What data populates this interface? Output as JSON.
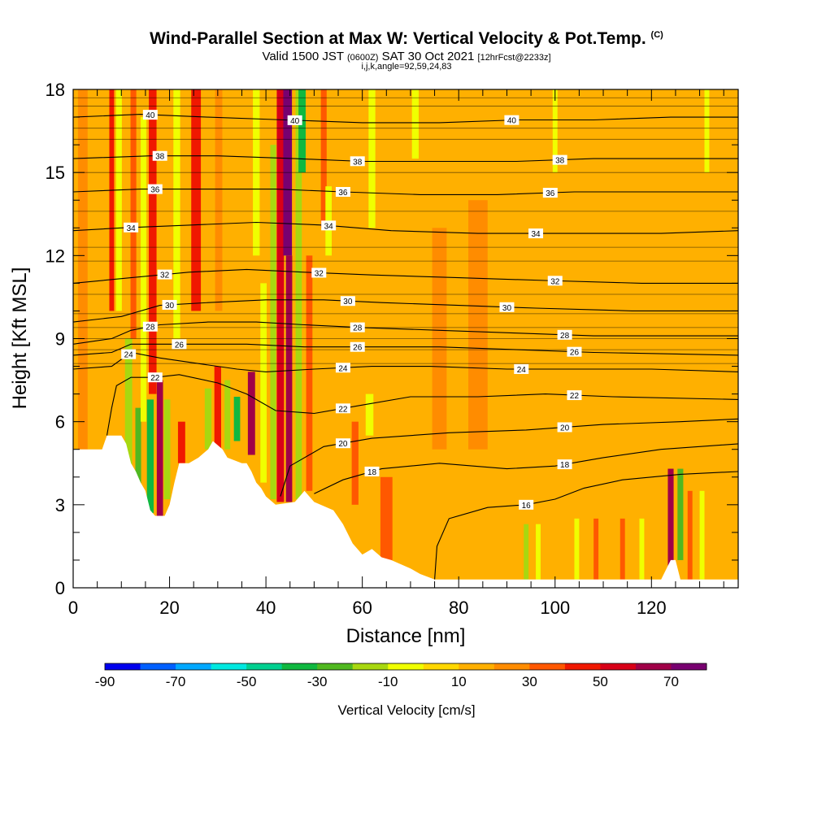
{
  "chart_data": {
    "type": "heatmap",
    "title": "Wind-Parallel Section at Max W: Vertical Velocity & Pot.Temp.",
    "title_tag": "(C)",
    "subtitle": {
      "valid": "Valid 1500 JST",
      "utc": "(0600Z)",
      "date": "SAT 30 Oct 2021",
      "fcst": "[12hrFcst@2233z]"
    },
    "subtitle2": "i,j,k,angle=92,59,24,83",
    "xlabel": "Distance [nm]",
    "ylabel": "Height [Kft MSL]",
    "xlim": [
      0,
      138
    ],
    "ylim": [
      0,
      18
    ],
    "xticks": [
      0,
      20,
      40,
      60,
      80,
      100,
      120
    ],
    "yticks": [
      0,
      3,
      6,
      9,
      12,
      15,
      18
    ],
    "colorbar": {
      "label": "Vertical Velocity [cm/s]",
      "tick_values": [
        -90,
        -70,
        -50,
        -30,
        -10,
        10,
        30,
        50,
        70
      ],
      "colors": [
        "#0000ee",
        "#0060ff",
        "#00a8ff",
        "#00e8e0",
        "#00d090",
        "#10b840",
        "#50b820",
        "#a8d810",
        "#f0ff00",
        "#ffd800",
        "#ffb000",
        "#ff8c00",
        "#ff5800",
        "#f01800",
        "#d80018",
        "#a00048",
        "#780070"
      ]
    },
    "background_value": 0,
    "terrain": [
      [
        0,
        5.0
      ],
      [
        6,
        5.0
      ],
      [
        7,
        5.5
      ],
      [
        10,
        5.5
      ],
      [
        11,
        5.2
      ],
      [
        12,
        4.5
      ],
      [
        13,
        4.2
      ],
      [
        14,
        3.8
      ],
      [
        15,
        3.5
      ],
      [
        16,
        2.8
      ],
      [
        17,
        2.6
      ],
      [
        19,
        2.6
      ],
      [
        20,
        3.0
      ],
      [
        21,
        3.8
      ],
      [
        22,
        4.5
      ],
      [
        24,
        4.5
      ],
      [
        26,
        4.7
      ],
      [
        28,
        5.0
      ],
      [
        29,
        5.3
      ],
      [
        31,
        5.0
      ],
      [
        32,
        4.7
      ],
      [
        35,
        4.5
      ],
      [
        36,
        4.5
      ],
      [
        37,
        4.2
      ],
      [
        38,
        3.8
      ],
      [
        39,
        3.6
      ],
      [
        40,
        3.3
      ],
      [
        42,
        3.0
      ],
      [
        46,
        3.1
      ],
      [
        48,
        3.5
      ],
      [
        50,
        3.1
      ],
      [
        54,
        2.8
      ],
      [
        56,
        2.3
      ],
      [
        58,
        1.6
      ],
      [
        60,
        1.2
      ],
      [
        62,
        1.4
      ],
      [
        64,
        1.1
      ],
      [
        66,
        1.0
      ],
      [
        70,
        0.7
      ],
      [
        72,
        0.5
      ],
      [
        75,
        0.3
      ],
      [
        100,
        0.3
      ],
      [
        122,
        0.3
      ],
      [
        124,
        1.0
      ],
      [
        125,
        1.0
      ],
      [
        126,
        0.3
      ],
      [
        138,
        0.3
      ]
    ],
    "vertical_velocity_bands": [
      {
        "x": 2,
        "w": 2,
        "y0": 5,
        "y1": 18,
        "v": 10
      },
      {
        "x": 8,
        "w": 1,
        "y0": 10,
        "y1": 18,
        "v": 30
      },
      {
        "x": 9.5,
        "w": 1.2,
        "y0": 10,
        "y1": 18,
        "v": -20
      },
      {
        "x": 11.5,
        "w": 1.5,
        "y0": 3.6,
        "y1": 9,
        "v": -30
      },
      {
        "x": 12.5,
        "w": 1.2,
        "y0": 9,
        "y1": 18,
        "v": 20
      },
      {
        "x": 13.5,
        "w": 1.2,
        "y0": 3.6,
        "y1": 6.5,
        "v": -40
      },
      {
        "x": 14.6,
        "w": 1.2,
        "y0": 6,
        "y1": 17,
        "v": -20
      },
      {
        "x": 16,
        "w": 1.4,
        "y0": 2.7,
        "y1": 6.8,
        "v": -50
      },
      {
        "x": 16.5,
        "w": 1.6,
        "y0": 7,
        "y1": 18,
        "v": 30
      },
      {
        "x": 18,
        "w": 1.3,
        "y0": 2.6,
        "y1": 7.5,
        "v": 50
      },
      {
        "x": 19.5,
        "w": 1.3,
        "y0": 3.2,
        "y1": 6.8,
        "v": -30
      },
      {
        "x": 21.5,
        "w": 1.4,
        "y0": 9,
        "y1": 18,
        "v": -20
      },
      {
        "x": 22.5,
        "w": 1.5,
        "y0": 4.5,
        "y1": 6,
        "v": 30
      },
      {
        "x": 25.5,
        "w": 2,
        "y0": 10,
        "y1": 18,
        "v": 30
      },
      {
        "x": 28,
        "w": 1.4,
        "y0": 5,
        "y1": 7.2,
        "v": -30
      },
      {
        "x": 30,
        "w": 1.4,
        "y0": 5,
        "y1": 8,
        "v": 30
      },
      {
        "x": 30.2,
        "w": 1.5,
        "y0": 10,
        "y1": 18,
        "v": 10
      },
      {
        "x": 32,
        "w": 1.2,
        "y0": 5,
        "y1": 7.5,
        "v": -30
      },
      {
        "x": 34,
        "w": 1.3,
        "y0": 5.3,
        "y1": 6.9,
        "v": -50
      },
      {
        "x": 37,
        "w": 1.5,
        "y0": 4.8,
        "y1": 7.8,
        "v": 50
      },
      {
        "x": 39.5,
        "w": 1.3,
        "y0": 3.8,
        "y1": 11,
        "v": -20
      },
      {
        "x": 38,
        "w": 1.4,
        "y0": 12,
        "y1": 18,
        "v": -20
      },
      {
        "x": 41.5,
        "w": 1.2,
        "y0": 3.2,
        "y1": 16,
        "v": -30
      },
      {
        "x": 43,
        "w": 1.5,
        "y0": 3.1,
        "y1": 18,
        "v": 40
      },
      {
        "x": 44.5,
        "w": 1.8,
        "y0": 12,
        "y1": 18,
        "v": 60
      },
      {
        "x": 44.8,
        "w": 1.3,
        "y0": 3.1,
        "y1": 12,
        "v": 50
      },
      {
        "x": 46.8,
        "w": 1.3,
        "y0": 3.2,
        "y1": 18,
        "v": -30
      },
      {
        "x": 47.5,
        "w": 1.5,
        "y0": 15,
        "y1": 18,
        "v": -50
      },
      {
        "x": 49,
        "w": 1.3,
        "y0": 3.5,
        "y1": 12,
        "v": 20
      },
      {
        "x": 52,
        "w": 1.2,
        "y0": 13,
        "y1": 18,
        "v": 20
      },
      {
        "x": 53,
        "w": 1.3,
        "y0": 12,
        "y1": 14.5,
        "v": -20
      },
      {
        "x": 58.5,
        "w": 1.4,
        "y0": 3,
        "y1": 6,
        "v": 20
      },
      {
        "x": 61.5,
        "w": 1.6,
        "y0": 5.5,
        "y1": 7,
        "v": -20
      },
      {
        "x": 62,
        "w": 1.4,
        "y0": 13,
        "y1": 18,
        "v": -20
      },
      {
        "x": 65,
        "w": 2.5,
        "y0": 1,
        "y1": 4,
        "v": 20
      },
      {
        "x": 71,
        "w": 1.4,
        "y0": 15.5,
        "y1": 18,
        "v": -15
      },
      {
        "x": 76,
        "w": 3,
        "y0": 5,
        "y1": 13,
        "v": 15
      },
      {
        "x": 84,
        "w": 4,
        "y0": 5,
        "y1": 14,
        "v": 10
      },
      {
        "x": 94,
        "w": 1,
        "y0": 0.3,
        "y1": 2.3,
        "v": -30
      },
      {
        "x": 96.5,
        "w": 1,
        "y0": 0.3,
        "y1": 2.3,
        "v": -20
      },
      {
        "x": 100,
        "w": 1,
        "y0": 15,
        "y1": 18,
        "v": -15
      },
      {
        "x": 104.5,
        "w": 1,
        "y0": 0.3,
        "y1": 2.5,
        "v": -20
      },
      {
        "x": 108.5,
        "w": 1,
        "y0": 0.3,
        "y1": 2.5,
        "v": 20
      },
      {
        "x": 114,
        "w": 1,
        "y0": 0.3,
        "y1": 2.5,
        "v": 20
      },
      {
        "x": 118,
        "w": 1,
        "y0": 0.3,
        "y1": 2.5,
        "v": -20
      },
      {
        "x": 124,
        "w": 1.2,
        "y0": 0.3,
        "y1": 4.3,
        "v": 50
      },
      {
        "x": 126,
        "w": 1.2,
        "y0": 1,
        "y1": 4.3,
        "v": -40
      },
      {
        "x": 128,
        "w": 1,
        "y0": 0.3,
        "y1": 3.5,
        "v": 20
      },
      {
        "x": 130.5,
        "w": 1,
        "y0": 0.3,
        "y1": 3.5,
        "v": -20
      },
      {
        "x": 131.5,
        "w": 1,
        "y0": 15,
        "y1": 18,
        "v": -15
      }
    ],
    "theta_contours": [
      {
        "k": 16,
        "pts": [
          [
            75,
            0.3
          ],
          [
            75.5,
            1.5
          ],
          [
            78,
            2.5
          ],
          [
            86,
            2.9
          ],
          [
            94,
            3.0
          ],
          [
            100,
            3.2
          ],
          [
            106,
            3.6
          ],
          [
            114,
            3.9
          ],
          [
            126,
            4.1
          ],
          [
            138,
            4.2
          ]
        ]
      },
      {
        "k": 18,
        "pts": [
          [
            50,
            3.4
          ],
          [
            56,
            3.9
          ],
          [
            64,
            4.3
          ],
          [
            76,
            4.5
          ],
          [
            90,
            4.3
          ],
          [
            100,
            4.4
          ],
          [
            110,
            4.7
          ],
          [
            122,
            5.0
          ],
          [
            138,
            5.2
          ]
        ]
      },
      {
        "k": 20,
        "pts": [
          [
            43,
            3.3
          ],
          [
            45,
            4.4
          ],
          [
            52,
            5.1
          ],
          [
            62,
            5.4
          ],
          [
            78,
            5.6
          ],
          [
            94,
            5.7
          ],
          [
            110,
            5.9
          ],
          [
            126,
            6.0
          ],
          [
            138,
            6.1
          ]
        ]
      },
      {
        "k": 22,
        "pts": [
          [
            7,
            5.5
          ],
          [
            8,
            6.5
          ],
          [
            9,
            7.3
          ],
          [
            12,
            7.6
          ],
          [
            17,
            7.6
          ],
          [
            22,
            7.7
          ],
          [
            30,
            7.4
          ],
          [
            36,
            7.0
          ],
          [
            42,
            6.4
          ],
          [
            50,
            6.3
          ],
          [
            60,
            6.6
          ],
          [
            70,
            6.9
          ],
          [
            84,
            6.9
          ],
          [
            98,
            7.0
          ],
          [
            112,
            6.9
          ],
          [
            138,
            6.8
          ]
        ]
      },
      {
        "k": 24,
        "pts": [
          [
            0,
            7.9
          ],
          [
            8,
            8.0
          ],
          [
            12,
            8.5
          ],
          [
            18,
            8.3
          ],
          [
            26,
            8.1
          ],
          [
            34,
            7.9
          ],
          [
            40,
            7.8
          ],
          [
            50,
            7.9
          ],
          [
            62,
            8.0
          ],
          [
            74,
            8.0
          ],
          [
            90,
            7.9
          ],
          [
            104,
            7.9
          ],
          [
            120,
            7.9
          ],
          [
            138,
            7.8
          ]
        ]
      },
      {
        "k": 26,
        "pts": [
          [
            0,
            8.4
          ],
          [
            8,
            8.5
          ],
          [
            12,
            8.8
          ],
          [
            18,
            8.8
          ],
          [
            26,
            8.8
          ],
          [
            36,
            8.8
          ],
          [
            48,
            8.7
          ],
          [
            60,
            8.7
          ],
          [
            76,
            8.7
          ],
          [
            92,
            8.6
          ],
          [
            108,
            8.5
          ],
          [
            138,
            8.4
          ]
        ]
      },
      {
        "k": 28,
        "pts": [
          [
            0,
            8.8
          ],
          [
            8,
            9.0
          ],
          [
            12,
            9.3
          ],
          [
            18,
            9.5
          ],
          [
            28,
            9.6
          ],
          [
            38,
            9.6
          ],
          [
            48,
            9.5
          ],
          [
            60,
            9.4
          ],
          [
            76,
            9.3
          ],
          [
            92,
            9.2
          ],
          [
            108,
            9.1
          ],
          [
            138,
            9.1
          ]
        ]
      },
      {
        "k": 30,
        "pts": [
          [
            0,
            9.6
          ],
          [
            10,
            9.8
          ],
          [
            18,
            10.2
          ],
          [
            28,
            10.3
          ],
          [
            40,
            10.4
          ],
          [
            52,
            10.4
          ],
          [
            64,
            10.3
          ],
          [
            80,
            10.2
          ],
          [
            96,
            10.1
          ],
          [
            116,
            10.0
          ],
          [
            138,
            10.0
          ]
        ]
      },
      {
        "k": 32,
        "pts": [
          [
            0,
            11.0
          ],
          [
            12,
            11.2
          ],
          [
            24,
            11.4
          ],
          [
            36,
            11.5
          ],
          [
            48,
            11.4
          ],
          [
            62,
            11.3
          ],
          [
            80,
            11.2
          ],
          [
            98,
            11.1
          ],
          [
            118,
            11.0
          ],
          [
            138,
            11.0
          ]
        ]
      },
      {
        "k": 34,
        "pts": [
          [
            0,
            12.9
          ],
          [
            10,
            13.0
          ],
          [
            24,
            13.1
          ],
          [
            38,
            13.2
          ],
          [
            52,
            13.1
          ],
          [
            66,
            12.9
          ],
          [
            84,
            12.8
          ],
          [
            102,
            12.8
          ],
          [
            122,
            12.8
          ],
          [
            138,
            12.9
          ]
        ]
      },
      {
        "k": 36,
        "pts": [
          [
            0,
            14.3
          ],
          [
            14,
            14.4
          ],
          [
            28,
            14.4
          ],
          [
            42,
            14.4
          ],
          [
            56,
            14.3
          ],
          [
            72,
            14.2
          ],
          [
            88,
            14.2
          ],
          [
            104,
            14.3
          ],
          [
            122,
            14.3
          ],
          [
            138,
            14.3
          ]
        ]
      },
      {
        "k": 38,
        "pts": [
          [
            0,
            15.5
          ],
          [
            16,
            15.6
          ],
          [
            30,
            15.6
          ],
          [
            46,
            15.5
          ],
          [
            60,
            15.4
          ],
          [
            76,
            15.4
          ],
          [
            92,
            15.4
          ],
          [
            108,
            15.5
          ],
          [
            124,
            15.5
          ],
          [
            138,
            15.5
          ]
        ]
      },
      {
        "k": 40,
        "pts": [
          [
            0,
            17.0
          ],
          [
            14,
            17.1
          ],
          [
            28,
            17.0
          ],
          [
            44,
            16.9
          ],
          [
            60,
            16.8
          ],
          [
            76,
            16.8
          ],
          [
            92,
            16.9
          ],
          [
            108,
            16.9
          ],
          [
            124,
            17.0
          ],
          [
            138,
            17.0
          ]
        ]
      }
    ],
    "theta_thin_lines_y": [
      8.1,
      8.6,
      9.0,
      9.4,
      9.9,
      10.6,
      11.8,
      12.3,
      13.6,
      15.0,
      16.2,
      16.6,
      17.4,
      17.7
    ],
    "theta_label_positions": [
      {
        "k": 16,
        "xs": [
          94
        ]
      },
      {
        "k": 18,
        "xs": [
          62,
          102
        ]
      },
      {
        "k": 20,
        "xs": [
          56,
          102
        ]
      },
      {
        "k": 22,
        "xs": [
          17,
          56,
          104
        ]
      },
      {
        "k": 24,
        "xs": [
          11.5,
          56,
          93
        ]
      },
      {
        "k": 26,
        "xs": [
          22,
          59,
          104
        ]
      },
      {
        "k": 28,
        "xs": [
          16,
          59,
          102
        ]
      },
      {
        "k": 30,
        "xs": [
          20,
          57,
          90
        ]
      },
      {
        "k": 32,
        "xs": [
          19,
          51,
          100
        ]
      },
      {
        "k": 34,
        "xs": [
          12,
          53,
          96
        ]
      },
      {
        "k": 36,
        "xs": [
          17,
          56,
          99
        ]
      },
      {
        "k": 38,
        "xs": [
          18,
          59,
          101
        ]
      },
      {
        "k": 40,
        "xs": [
          16,
          46,
          91
        ]
      }
    ]
  }
}
